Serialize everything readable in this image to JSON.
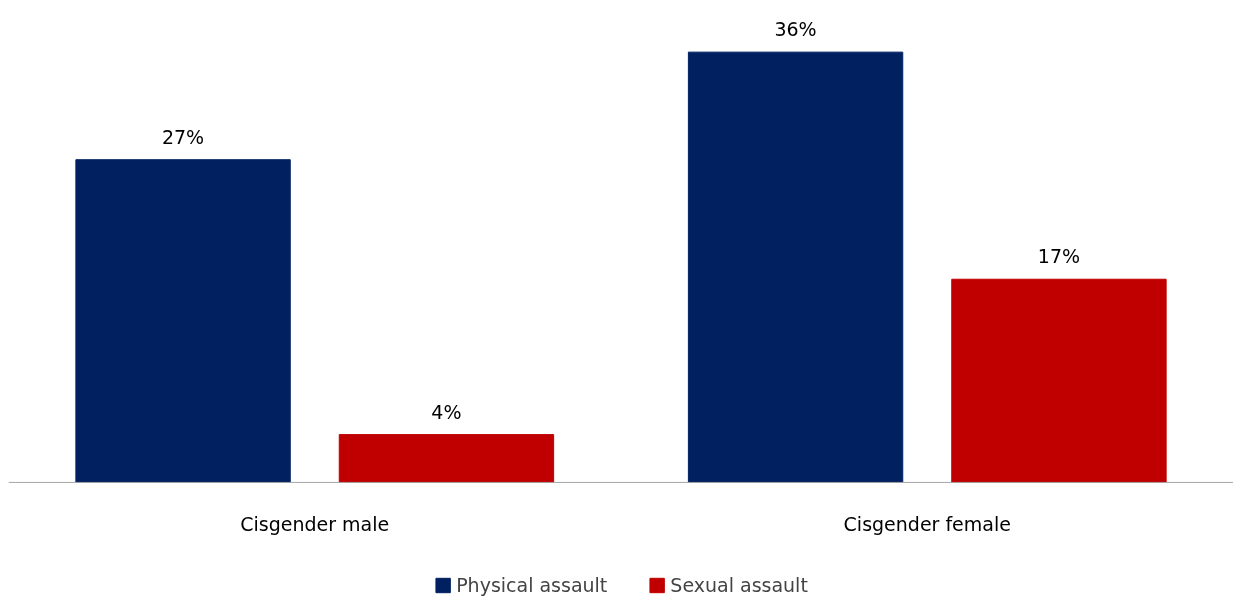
{
  "chart_data": {
    "type": "bar",
    "categories": [
      "Cisgender male",
      "Cisgender female"
    ],
    "series": [
      {
        "name": "Physical assault",
        "color": "#002060",
        "values": [
          27,
          36
        ],
        "value_labels": [
          "27%",
          "36%"
        ]
      },
      {
        "name": "Sexual assault",
        "color": "#c00000",
        "values": [
          4,
          17
        ],
        "value_labels": [
          "4%",
          "17%"
        ]
      }
    ],
    "tick_labels": "x",
    "grid": false,
    "legend": "bottom"
  }
}
